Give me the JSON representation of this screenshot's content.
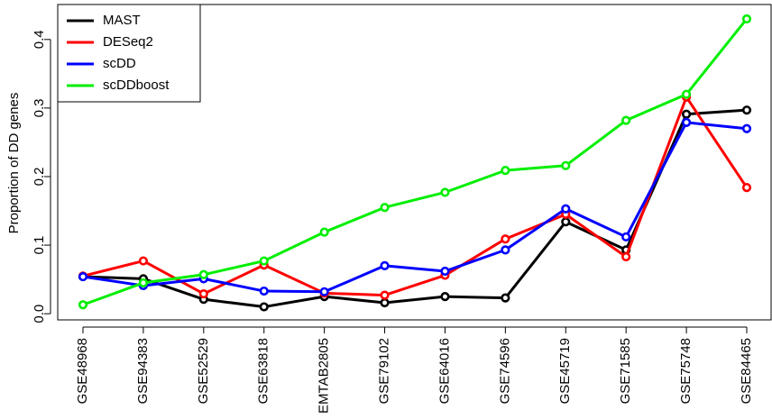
{
  "chart_data": {
    "type": "line",
    "y_label": "Proportion of DD genes",
    "categories": [
      "GSE48968",
      "GSE94383",
      "GSE52529",
      "GSE63818",
      "EMTAB2805",
      "GSE79102",
      "GSE64016",
      "GSE74596",
      "GSE45719",
      "GSE71585",
      "GSE75748",
      "GSE84465"
    ],
    "series": [
      {
        "name": "MAST",
        "color": "#000000",
        "values": [
          0.054,
          0.051,
          0.021,
          0.01,
          0.025,
          0.016,
          0.025,
          0.023,
          0.134,
          0.093,
          0.291,
          0.297
        ]
      },
      {
        "name": "DESeq2",
        "color": "#ff0000",
        "values": [
          0.055,
          0.077,
          0.029,
          0.071,
          0.03,
          0.027,
          0.056,
          0.109,
          0.145,
          0.083,
          0.316,
          0.184
        ]
      },
      {
        "name": "scDD",
        "color": "#0000ff",
        "values": [
          0.054,
          0.041,
          0.051,
          0.033,
          0.032,
          0.07,
          0.062,
          0.093,
          0.153,
          0.112,
          0.279,
          0.27
        ]
      },
      {
        "name": "scDDboost",
        "color": "#00ee00",
        "values": [
          0.013,
          0.045,
          0.057,
          0.077,
          0.119,
          0.155,
          0.177,
          0.209,
          0.216,
          0.282,
          0.32,
          0.43
        ]
      }
    ],
    "ylim": [
      -0.009,
      0.451
    ],
    "yticks": [
      {
        "value": 0,
        "label": "0.0"
      },
      0.1,
      0.2,
      0.3,
      0.4
    ],
    "legend": "top-left"
  }
}
